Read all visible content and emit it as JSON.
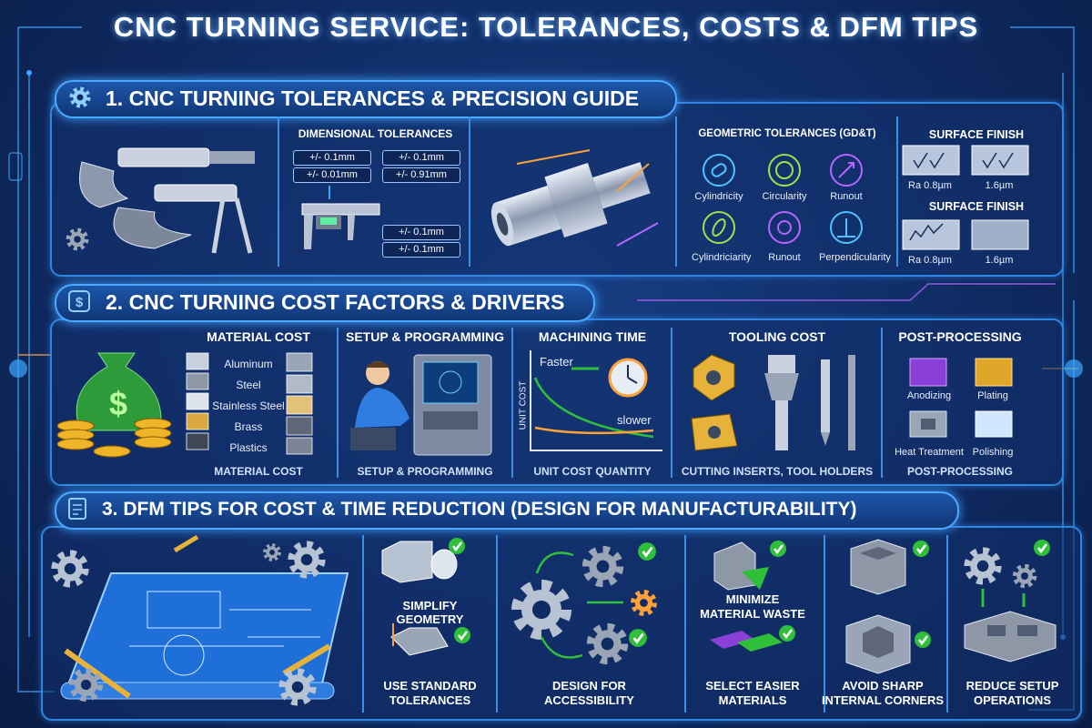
{
  "title": "CNC TURNING SERVICE: TOLERANCES, COSTS & DFM TIPS",
  "section1": {
    "heading": "1. CNC TURNING TOLERANCES & PRECISION GUIDE",
    "dimensional": {
      "title": "DIMENSIONAL TOLERANCES",
      "labels": [
        "+/- 0.1mm",
        "+/- 0.1mm",
        "+/- 0.01mm",
        "+/- 0.91mm",
        "+/- 0.1mm",
        "+/- 0.1mm"
      ]
    },
    "geometric": {
      "title": "GEOMETRIC TOLERANCES (GD&T)",
      "items": [
        "Cylindricity",
        "Circularity",
        "Runout",
        "Cylindriciarity",
        "Runout",
        "Perpendicularity"
      ]
    },
    "surface_finish": [
      {
        "title": "SURFACE FINISH",
        "labels": [
          "Ra 0.8µm",
          "1.6µm"
        ]
      },
      {
        "title": "SURFACE FINISH",
        "labels": [
          "Ra 0.8µm",
          "1.6µm"
        ]
      }
    ]
  },
  "section2": {
    "heading": "2. CNC TURNING COST FACTORS & DRIVERS",
    "material": {
      "title": "MATERIAL COST",
      "items": [
        "Aluminum",
        "Steel",
        "Stainless Steel",
        "Brass",
        "Plastics"
      ],
      "footer": "MATERIAL COST"
    },
    "setup": {
      "title": "SETUP & PROGRAMMING",
      "footer": "SETUP & PROGRAMMING"
    },
    "machining": {
      "title": "MACHINING TIME",
      "faster": "Faster",
      "slower": "slower",
      "axis": "UNIT COST",
      "footer": "UNIT COST QUANTITY"
    },
    "tooling": {
      "title": "TOOLING COST",
      "footer": "CUTTING INSERTS, TOOL HOLDERS"
    },
    "post": {
      "title": "POST-PROCESSING",
      "items": [
        "Anodizing",
        "Plating",
        "Heat Treatment",
        "Polishing"
      ],
      "footer": "POST-PROCESSING"
    }
  },
  "section3": {
    "heading": "3. DFM TIPS FOR COST & TIME REDUCTION (DESIGN FOR MANUFACTURABILITY)",
    "tips": [
      [
        "SIMPLIFY",
        "GEOMETRY"
      ],
      [
        "USE STANDARD",
        "TOLERANCES"
      ],
      [
        "DESIGN FOR",
        "ACCESSIBILITY"
      ],
      [
        "MINIMIZE",
        "MATERIAL WASTE"
      ],
      [
        "SELECT EASIER",
        "MATERIALS"
      ],
      [
        "AVOID SHARP",
        "INTERNAL CORNERS"
      ],
      [
        "REDUCE SETUP",
        "OPERATIONS"
      ]
    ]
  }
}
